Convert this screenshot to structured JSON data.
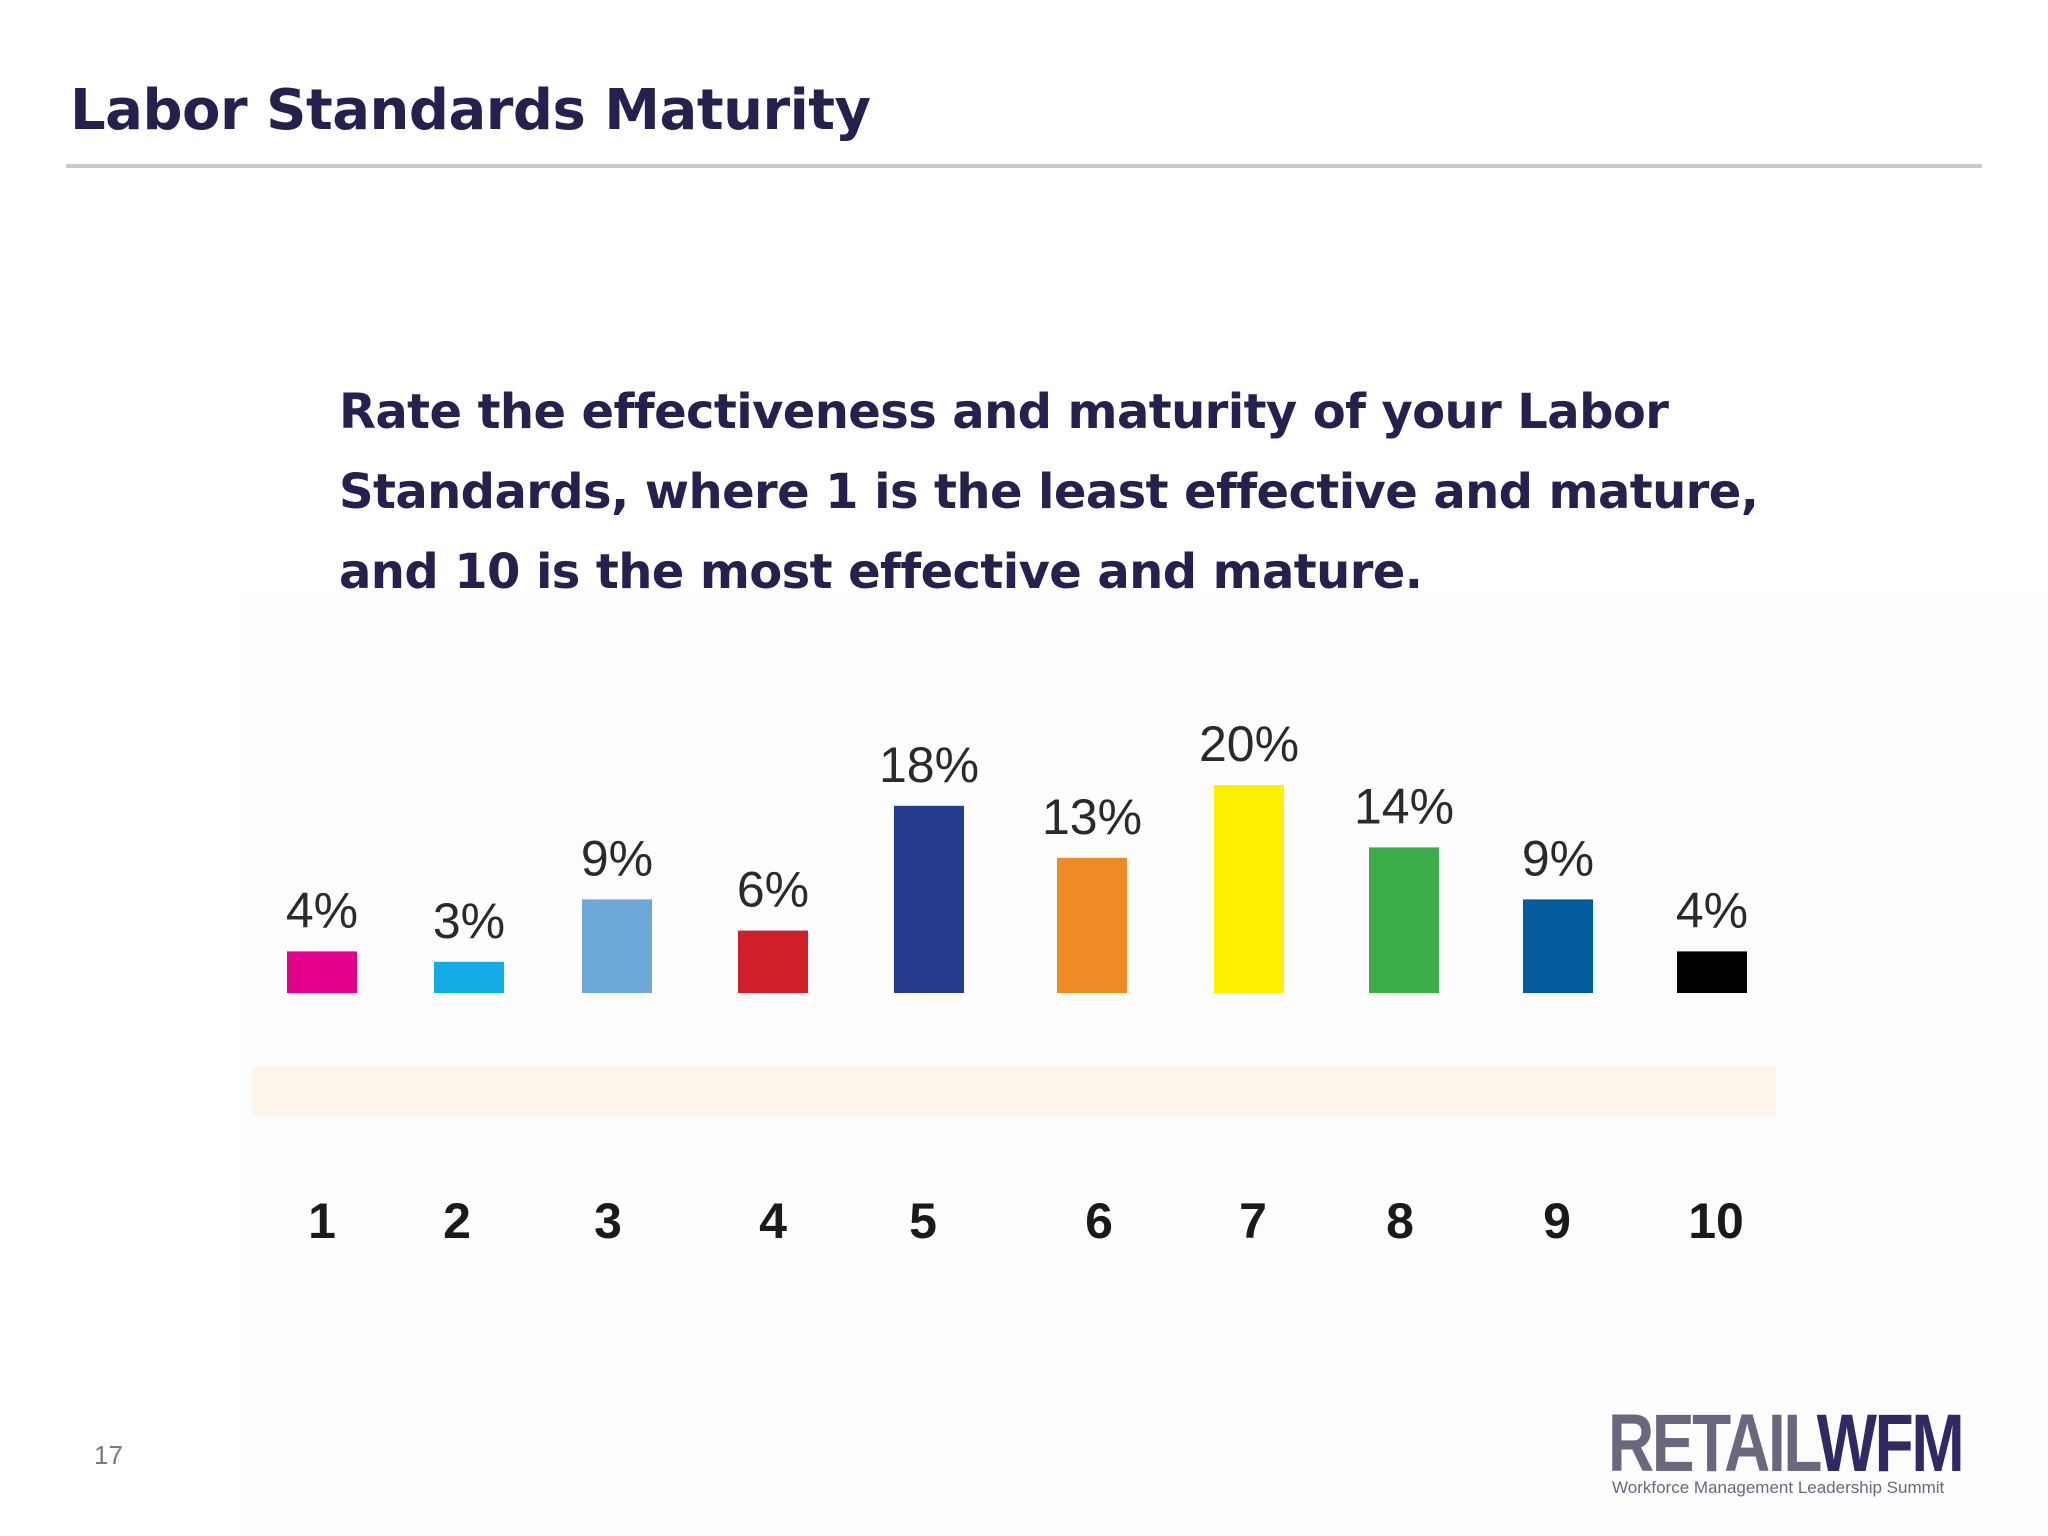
{
  "slide": {
    "title": "Labor Standards Maturity",
    "question": "Rate the effectiveness and maturity of your Labor Standards, where 1 is the least effective and mature, and 10 is the most effective and mature.",
    "page_number": "17"
  },
  "logo": {
    "word_retail": "RETAIL",
    "word_wfm": "WFM",
    "tagline": "Workforce Management Leadership Summit"
  },
  "chart_data": {
    "type": "bar",
    "categories": [
      "1",
      "2",
      "3",
      "4",
      "5",
      "6",
      "7",
      "8",
      "9",
      "10"
    ],
    "values": [
      4,
      3,
      9,
      6,
      18,
      13,
      20,
      14,
      9,
      4
    ],
    "value_labels": [
      "4%",
      "3%",
      "9%",
      "6%",
      "18%",
      "13%",
      "20%",
      "14%",
      "9%",
      "4%"
    ],
    "colors": [
      "#e5008c",
      "#12abe5",
      "#6ea8d8",
      "#cf1f2b",
      "#233c8e",
      "#f08a24",
      "#fff000",
      "#3cae49",
      "#035c9e",
      "#000000"
    ],
    "title": "",
    "xlabel": "",
    "ylabel": "",
    "ylim": [
      0,
      20
    ],
    "grid": false,
    "legend": "none",
    "axis_band_color": "#fdf5ec"
  }
}
